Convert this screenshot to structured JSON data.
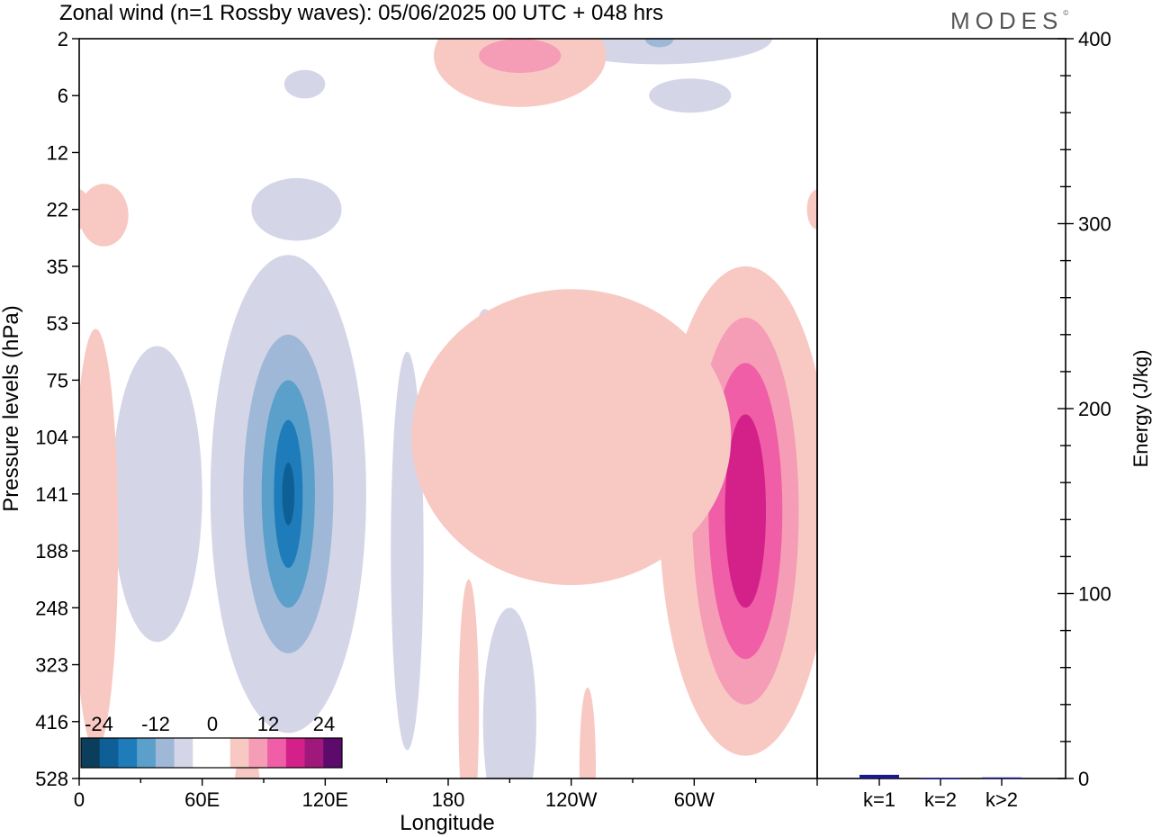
{
  "header": {
    "title": "Zonal wind (n=1 Rossby waves):  05/06/2025  00 UTC  + 048 hrs",
    "brand": "MODES",
    "brand_mark": "©"
  },
  "colors": {
    "neg": [
      "#0b3e5c",
      "#0d5f96",
      "#1f7cba",
      "#5b9fcb",
      "#9fb8d8",
      "#d4d6e8"
    ],
    "zero": "#ffffff",
    "pos": [
      "#f8c9c3",
      "#f59cb6",
      "#ef5ea6",
      "#d4218a",
      "#a0187a",
      "#5c0a6b"
    ],
    "energy_bar": "#1a1a8c"
  },
  "chart_data": [
    {
      "type": "heatmap",
      "title": "Zonal wind (n=1 Rossby waves):  05/06/2025  00 UTC  + 048 hrs",
      "xlabel": "Longitude",
      "ylabel": "Pressure levels (hPa)",
      "x_ticks": [
        "0",
        "60E",
        "120E",
        "180",
        "120W",
        "60W"
      ],
      "x_tick_values": [
        0,
        60,
        120,
        180,
        240,
        300
      ],
      "x_range": [
        0,
        360
      ],
      "y_ticks": [
        "2",
        "6",
        "12",
        "22",
        "35",
        "53",
        "75",
        "104",
        "141",
        "188",
        "248",
        "323",
        "416",
        "528"
      ],
      "colorbar": {
        "labels": [
          "-24",
          "-12",
          "0",
          "12",
          "24"
        ],
        "bins": 14
      },
      "features": [
        {
          "lon": 102,
          "level_index": 8.0,
          "sign": "negative",
          "peak": -20
        },
        {
          "lon": 38,
          "level_index": 8.0,
          "sign": "negative",
          "peak": -4
        },
        {
          "lon": 160,
          "level_index": 9.0,
          "sign": "negative",
          "peak": -4
        },
        {
          "lon": 210,
          "level_index": 12.0,
          "sign": "negative",
          "peak": -4
        },
        {
          "lon": 106,
          "level_index": 3.0,
          "sign": "negative",
          "peak": -4
        },
        {
          "lon": 110,
          "level_index": 0.8,
          "sign": "negative",
          "peak": -4
        },
        {
          "lon": 283,
          "level_index": 0.0,
          "sign": "negative",
          "peak": -8
        },
        {
          "lon": 298,
          "level_index": 1.0,
          "sign": "negative",
          "peak": -4
        },
        {
          "lon": 198,
          "level_index": 5.0,
          "sign": "negative",
          "peak": -4
        },
        {
          "lon": 325,
          "level_index": 8.3,
          "sign": "positive",
          "peak": 16
        },
        {
          "lon": 240,
          "level_index": 7.0,
          "sign": "positive",
          "peak": 4
        },
        {
          "lon": 8,
          "level_index": 8.8,
          "sign": "positive",
          "peak": 4
        },
        {
          "lon": 190,
          "level_index": 11.8,
          "sign": "positive",
          "peak": 4
        },
        {
          "lon": 248,
          "level_index": 12.8,
          "sign": "positive",
          "peak": 4
        },
        {
          "lon": 215,
          "level_index": 0.3,
          "sign": "positive",
          "peak": 12
        },
        {
          "lon": 12,
          "level_index": 3.1,
          "sign": "positive",
          "peak": 4
        },
        {
          "lon": 358,
          "level_index": 8.5,
          "sign": "positive",
          "peak": 4
        },
        {
          "lon": 360,
          "level_index": 3.0,
          "sign": "positive",
          "peak": 4
        },
        {
          "lon": 82,
          "level_index": 13.0,
          "sign": "positive",
          "peak": 4
        }
      ]
    },
    {
      "type": "bar",
      "ylabel": "Energy (J/kg)",
      "categories": [
        "k=1",
        "k=2",
        "k>2"
      ],
      "values": [
        2,
        0.3,
        0.6
      ],
      "ylim": [
        0,
        400
      ],
      "y_ticks": [
        "0",
        "100",
        "200",
        "300",
        "400"
      ]
    }
  ]
}
